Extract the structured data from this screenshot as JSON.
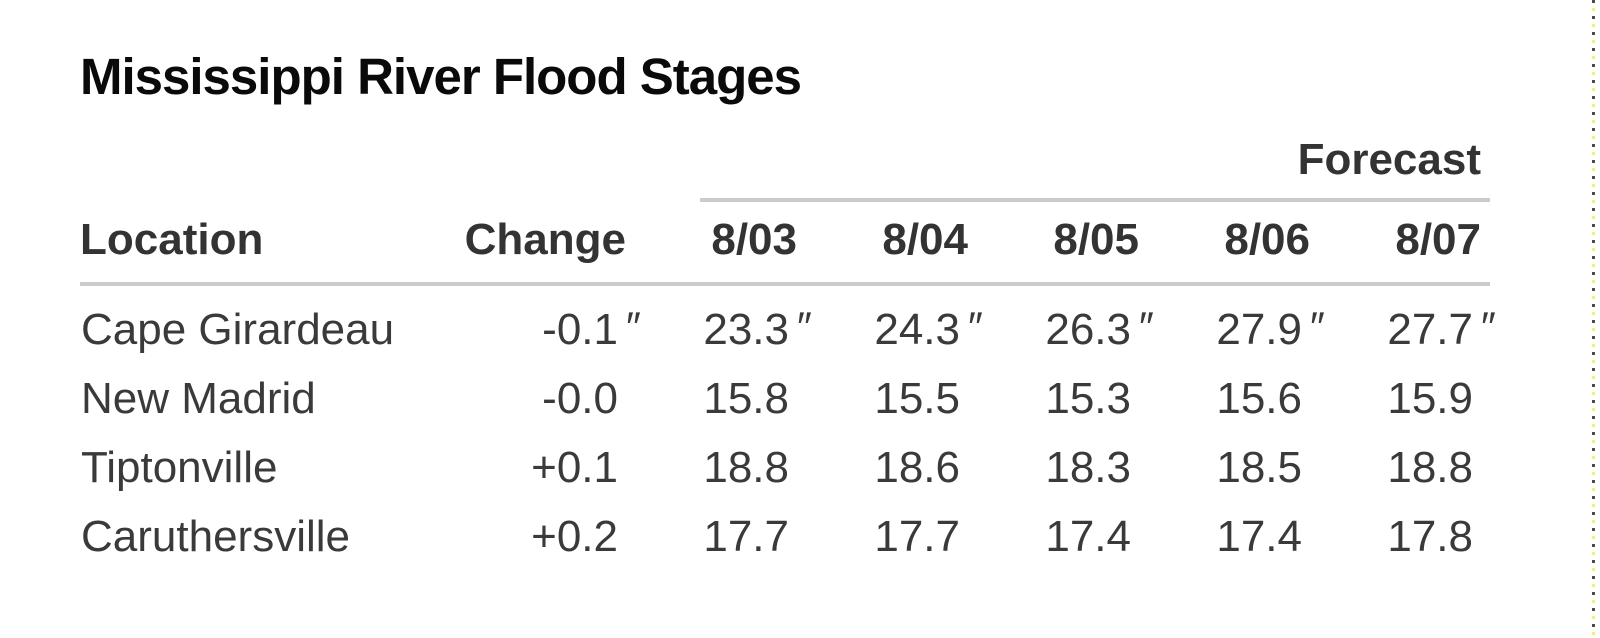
{
  "page": {
    "title": "Mississippi River Flood Stages"
  },
  "colors": {
    "background": "#ffffff",
    "title_text": "#0a0a0a",
    "header_text": "#333333",
    "table_text": "#3a3a3a",
    "divider_line": "#cbcbcb",
    "selection_dash_dark": "#4a4a4a",
    "selection_dash_yellow": "#f7ef6a"
  },
  "table": {
    "group_header": "Forecast",
    "columns": [
      "Location",
      "Change",
      "8/03",
      "8/04",
      "8/05",
      "8/06",
      "8/07"
    ],
    "rows": [
      {
        "location": "Cape Girardeau",
        "change": {
          "v": "-0.1",
          "u": "″"
        },
        "values": [
          {
            "v": "23.3",
            "u": "″"
          },
          {
            "v": "24.3",
            "u": "″"
          },
          {
            "v": "26.3",
            "u": "″"
          },
          {
            "v": "27.9",
            "u": "″"
          },
          {
            "v": "27.7",
            "u": "″"
          }
        ]
      },
      {
        "location": "New Madrid",
        "change": {
          "v": "-0.0",
          "u": ""
        },
        "values": [
          {
            "v": "15.8",
            "u": ""
          },
          {
            "v": "15.5",
            "u": ""
          },
          {
            "v": "15.3",
            "u": ""
          },
          {
            "v": "15.6",
            "u": ""
          },
          {
            "v": "15.9",
            "u": ""
          }
        ]
      },
      {
        "location": "Tiptonville",
        "change": {
          "v": "+0.1",
          "u": ""
        },
        "values": [
          {
            "v": "18.8",
            "u": ""
          },
          {
            "v": "18.6",
            "u": ""
          },
          {
            "v": "18.3",
            "u": ""
          },
          {
            "v": "18.5",
            "u": ""
          },
          {
            "v": "18.8",
            "u": ""
          }
        ]
      },
      {
        "location": "Caruthersville",
        "change": {
          "v": "+0.2",
          "u": ""
        },
        "values": [
          {
            "v": "17.7",
            "u": ""
          },
          {
            "v": "17.7",
            "u": ""
          },
          {
            "v": "17.4",
            "u": ""
          },
          {
            "v": "17.4",
            "u": ""
          },
          {
            "v": "17.8",
            "u": ""
          }
        ]
      }
    ]
  },
  "chart_data": {
    "type": "table",
    "title": "Mississippi River Flood Stages",
    "group_header": "Forecast",
    "columns": [
      "Location",
      "Change",
      "8/03",
      "8/04",
      "8/05",
      "8/06",
      "8/07"
    ],
    "rows": [
      {
        "location": "Cape Girardeau",
        "change": -0.1,
        "forecast": [
          23.3,
          24.3,
          26.3,
          27.9,
          27.7
        ],
        "unit_mark": "″"
      },
      {
        "location": "New Madrid",
        "change": -0.0,
        "forecast": [
          15.8,
          15.5,
          15.3,
          15.6,
          15.9
        ],
        "unit_mark": ""
      },
      {
        "location": "Tiptonville",
        "change": 0.1,
        "forecast": [
          18.8,
          18.6,
          18.3,
          18.5,
          18.8
        ],
        "unit_mark": ""
      },
      {
        "location": "Caruthersville",
        "change": 0.2,
        "forecast": [
          17.7,
          17.7,
          17.4,
          17.4,
          17.8
        ],
        "unit_mark": ""
      }
    ]
  }
}
